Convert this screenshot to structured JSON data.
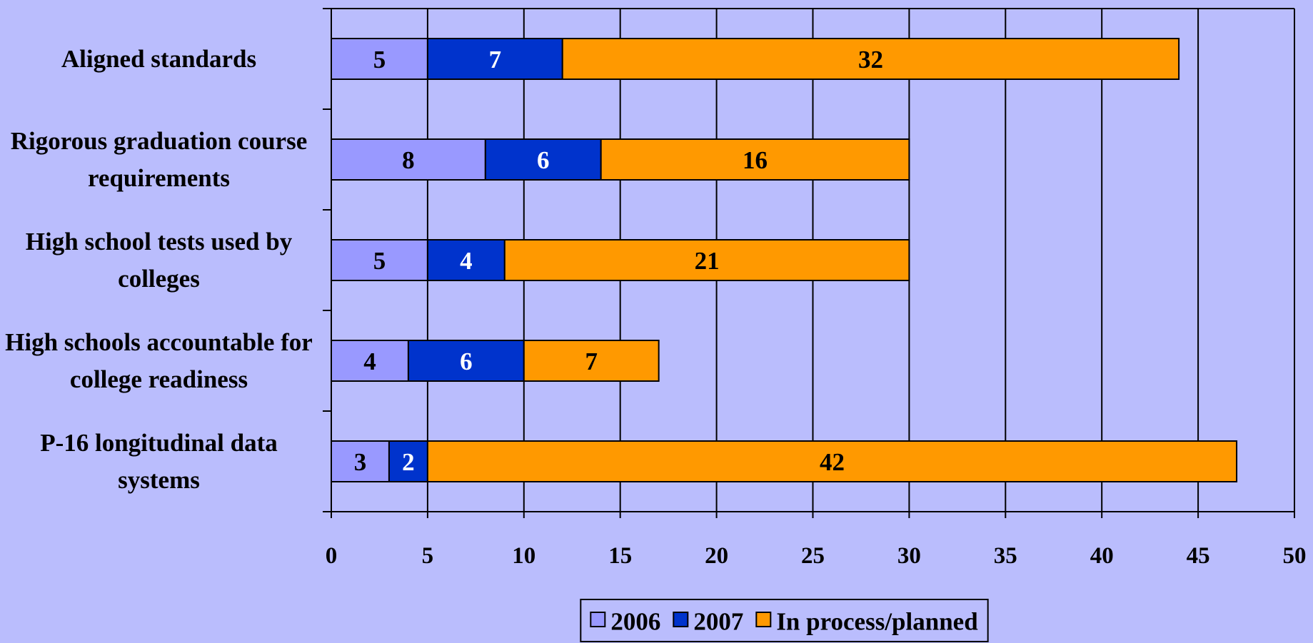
{
  "chart_data": {
    "type": "bar",
    "orientation": "horizontal",
    "stacked": true,
    "categories": [
      "Aligned standards",
      "Rigorous graduation course requirements",
      "High school tests used by colleges",
      "High schools accountable for college readiness",
      "P-16 longitudinal data systems"
    ],
    "series": [
      {
        "name": "2006",
        "color": "#9999ff",
        "values": [
          5,
          8,
          5,
          4,
          3
        ]
      },
      {
        "name": "2007",
        "color": "#0033cc",
        "values": [
          7,
          6,
          4,
          6,
          2
        ]
      },
      {
        "name": "In process/planned",
        "color": "#ff9900",
        "values": [
          32,
          16,
          21,
          7,
          42
        ]
      }
    ],
    "xlim": [
      0,
      50
    ],
    "xticks": [
      0,
      5,
      10,
      15,
      20,
      25,
      30,
      35,
      40,
      45,
      50
    ],
    "grid": true,
    "legend": "bottom"
  }
}
